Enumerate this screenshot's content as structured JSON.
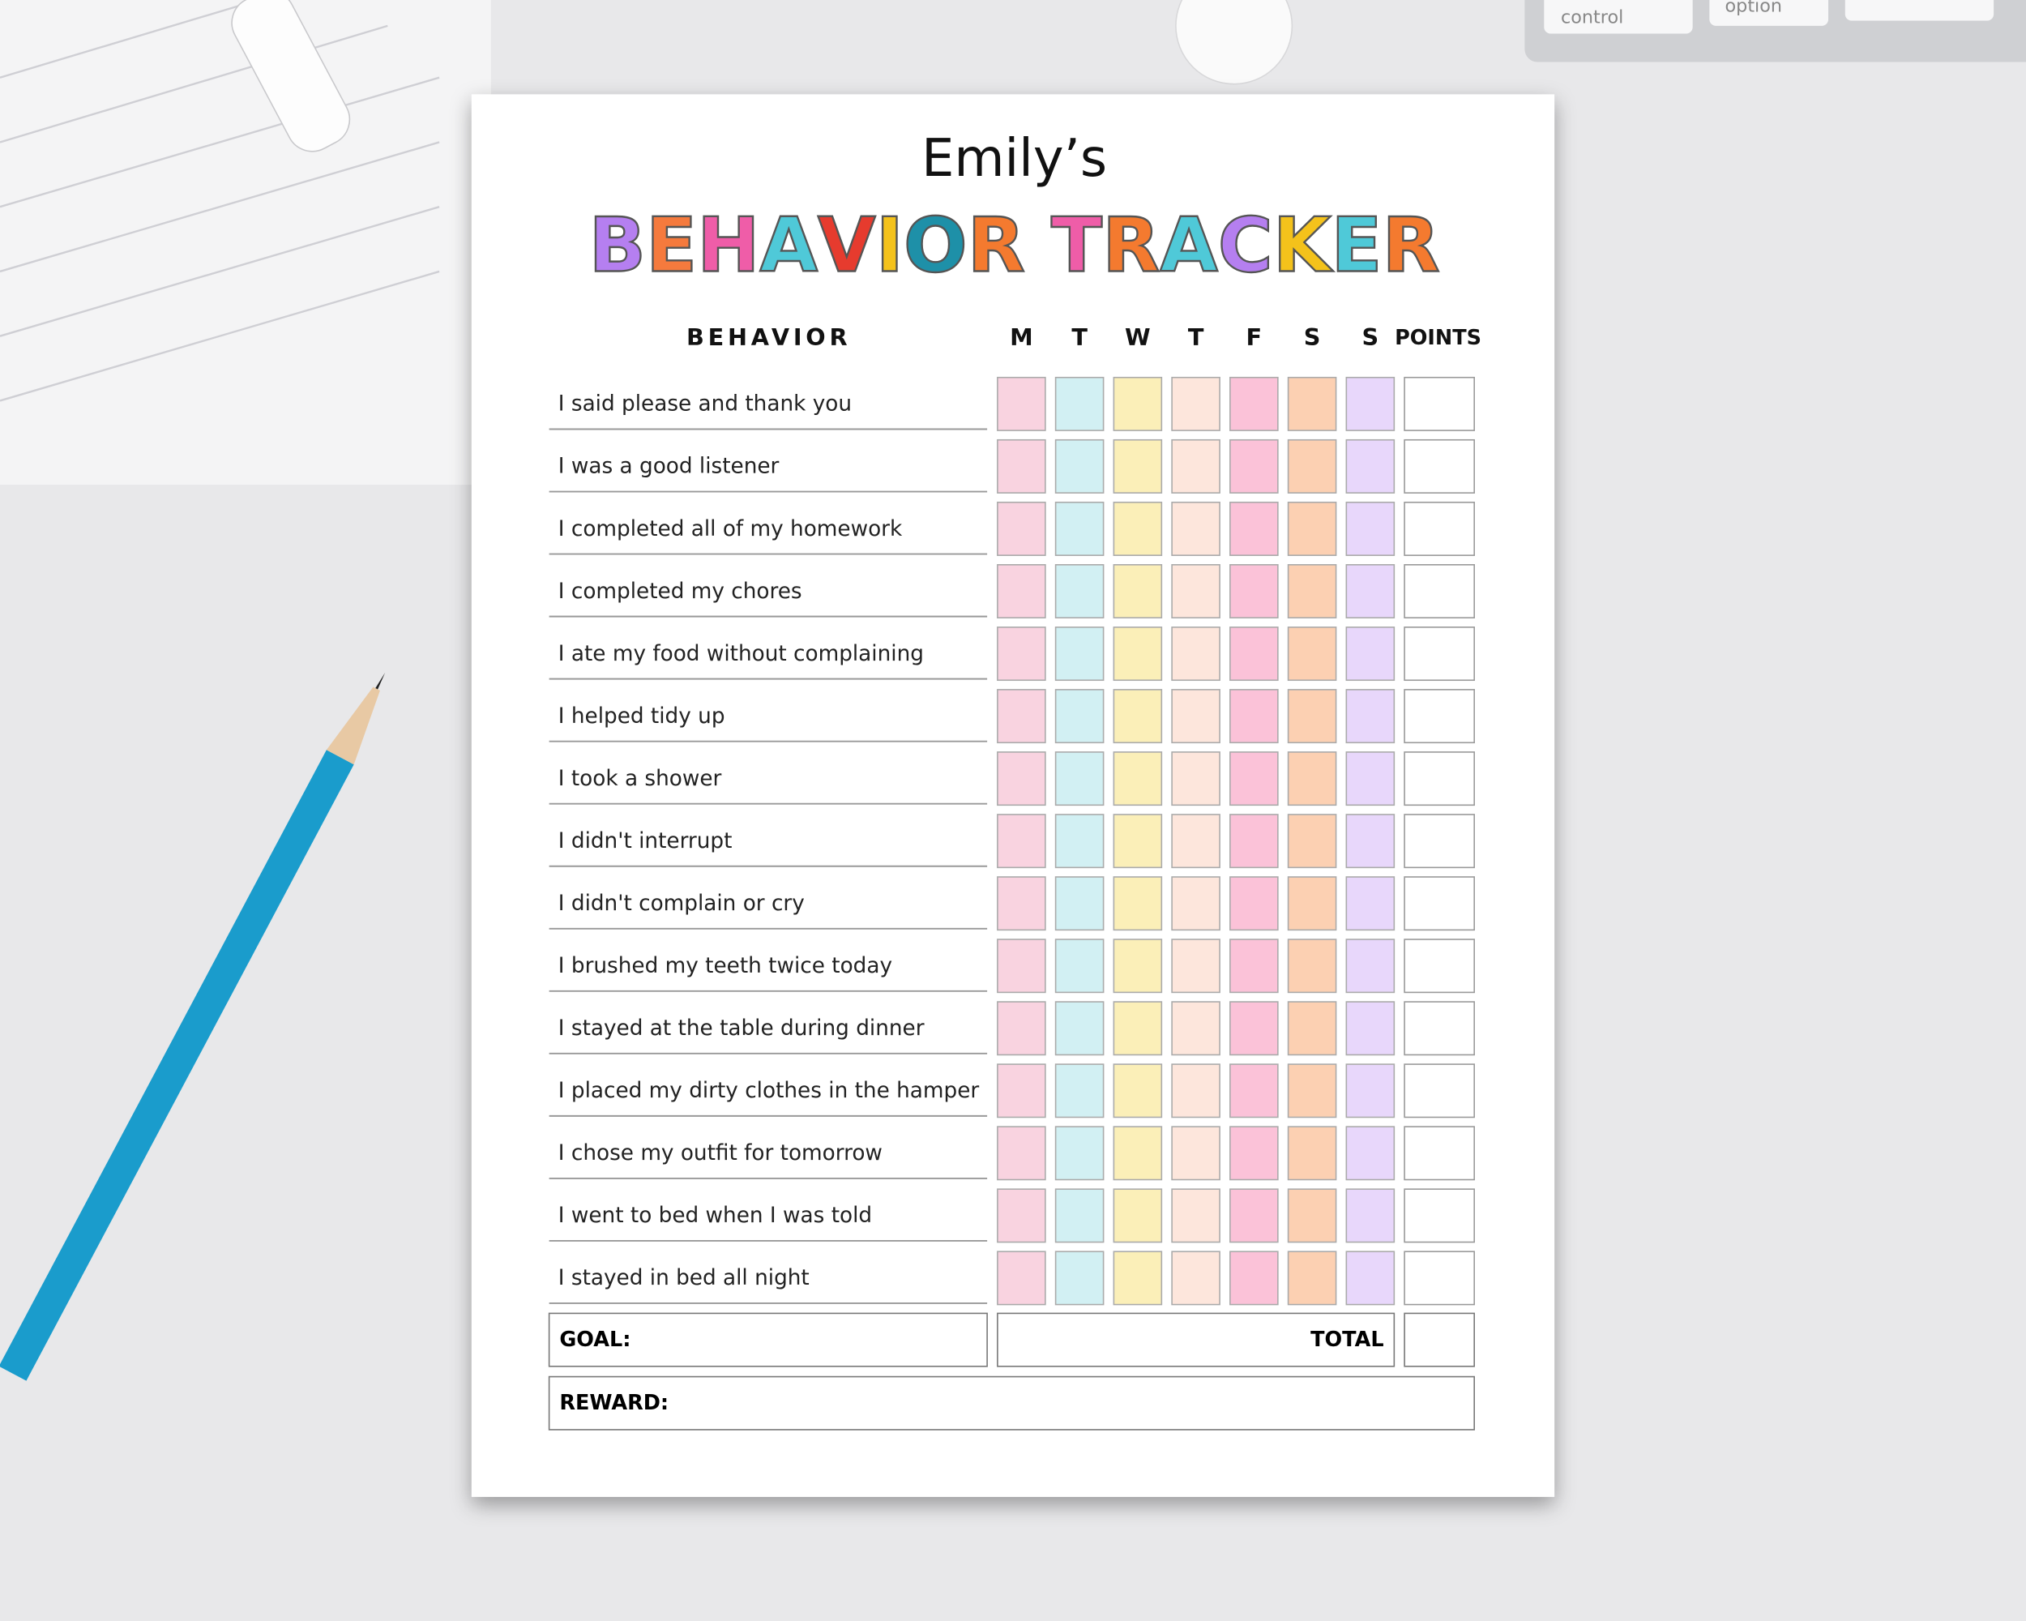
{
  "background": {
    "keys": [
      "control",
      "option"
    ]
  },
  "header": {
    "name": "Emily’s",
    "title": "BEHAVIOR TRACKER",
    "title_colors": [
      "#b57ff0",
      "#f57a3d",
      "#ef5da8",
      "#4fc9d8",
      "#e63b2e",
      "#f4c21b",
      "#1e90a8",
      "#f47a2f",
      null,
      "#ef5da8",
      "#f47a2f",
      "#4fc9d8",
      "#b57ff0",
      "#f4c21b",
      "#4fc9d8",
      "#f47a2f"
    ]
  },
  "table": {
    "columns": [
      "BEHAVIOR",
      "M",
      "T",
      "W",
      "T",
      "F",
      "S",
      "S",
      "POINTS"
    ],
    "day_colors": [
      "#f9d3e0",
      "#d2f0f3",
      "#fbefb8",
      "#fde6dc",
      "#fbc2d8",
      "#fcd0b2",
      "#e8d7fb"
    ],
    "rows": [
      "I said please and thank you",
      "I was a good listener",
      "I completed all of my homework",
      "I completed my chores",
      "I ate my food without complaining",
      "I helped tidy up",
      "I took a shower",
      "I didn't interrupt",
      "I didn't complain or cry",
      "I brushed my teeth twice today",
      "I stayed at the table during dinner",
      "I placed my dirty clothes in the hamper",
      "I chose my outfit for tomorrow",
      "I went to bed when I was told",
      "I stayed in bed all night"
    ]
  },
  "footer": {
    "goal": "GOAL:",
    "total": "TOTAL",
    "reward": "REWARD:"
  }
}
